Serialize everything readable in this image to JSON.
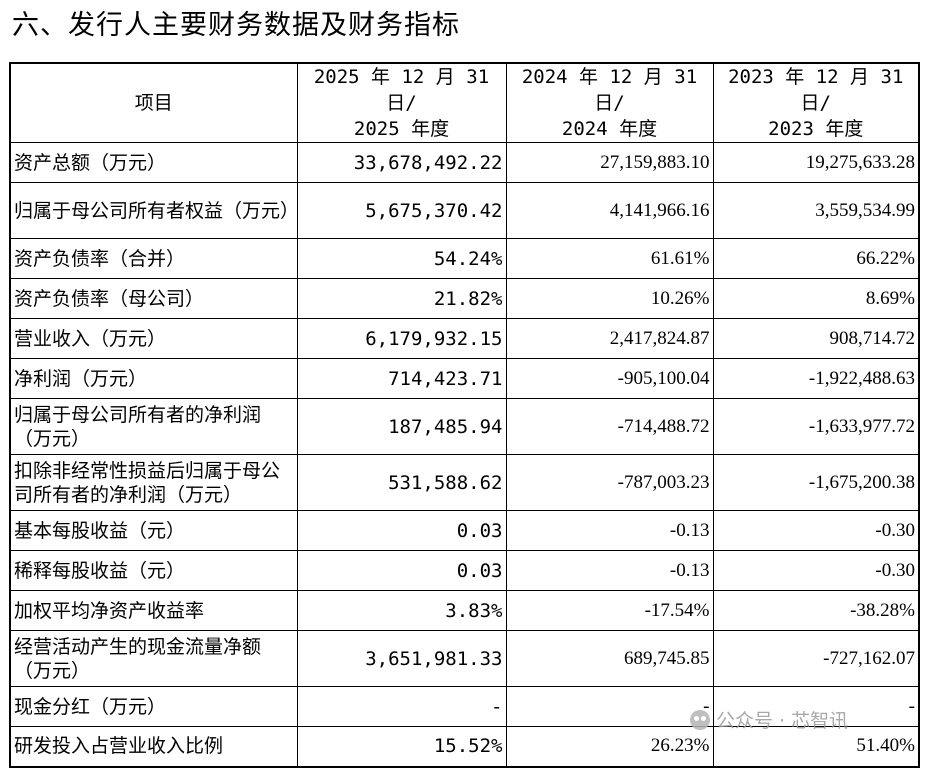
{
  "title": "六、发行人主要财务数据及财务指标",
  "table": {
    "headers": {
      "item": "项目",
      "col1_line1": "2025 年 12 月 31 日/",
      "col1_line2": "2025 年度",
      "col2_line1": "2024 年 12 月 31 日/",
      "col2_line2": "2024 年度",
      "col3_line1": "2023 年 12 月 31 日/",
      "col3_line2": "2023 年度"
    },
    "rows": [
      {
        "label": "资产总额（万元）",
        "v2025": "33,678,492.22",
        "v2024": "27,159,883.10",
        "v2023": "19,275,633.28"
      },
      {
        "label": "归属于母公司所有者权益（万元）",
        "v2025": "5,675,370.42",
        "v2024": "4,141,966.16",
        "v2023": "3,559,534.99"
      },
      {
        "label": "资产负债率（合并）",
        "v2025": "54.24%",
        "v2024": "61.61%",
        "v2023": "66.22%"
      },
      {
        "label": "资产负债率（母公司）",
        "v2025": "21.82%",
        "v2024": "10.26%",
        "v2023": "8.69%"
      },
      {
        "label": "营业收入（万元）",
        "v2025": "6,179,932.15",
        "v2024": "2,417,824.87",
        "v2023": "908,714.72"
      },
      {
        "label": "净利润（万元）",
        "v2025": "714,423.71",
        "v2024": "-905,100.04",
        "v2023": "-1,922,488.63"
      },
      {
        "label": "归属于母公司所有者的净利润（万元）",
        "v2025": "187,485.94",
        "v2024": "-714,488.72",
        "v2023": "-1,633,977.72"
      },
      {
        "label": "扣除非经常性损益后归属于母公司所有者的净利润（万元）",
        "v2025": "531,588.62",
        "v2024": "-787,003.23",
        "v2023": "-1,675,200.38"
      },
      {
        "label": "基本每股收益（元）",
        "v2025": "0.03",
        "v2024": "-0.13",
        "v2023": "-0.30"
      },
      {
        "label": "稀释每股收益（元）",
        "v2025": "0.03",
        "v2024": "-0.13",
        "v2023": "-0.30"
      },
      {
        "label": "加权平均净资产收益率",
        "v2025": "3.83%",
        "v2024": "-17.54%",
        "v2023": "-38.28%"
      },
      {
        "label": "经营活动产生的现金流量净额（万元）",
        "v2025": "3,651,981.33",
        "v2024": "689,745.85",
        "v2023": "-727,162.07"
      },
      {
        "label": "现金分红（万元）",
        "v2025": "-",
        "v2024": "-",
        "v2023": "-"
      },
      {
        "label": "研发投入占营业收入比例",
        "v2025": "15.52%",
        "v2024": "26.23%",
        "v2023": "51.40%"
      }
    ]
  },
  "watermark": {
    "icon": "wechat-icon",
    "text": "公众号 · 芯智讯"
  }
}
